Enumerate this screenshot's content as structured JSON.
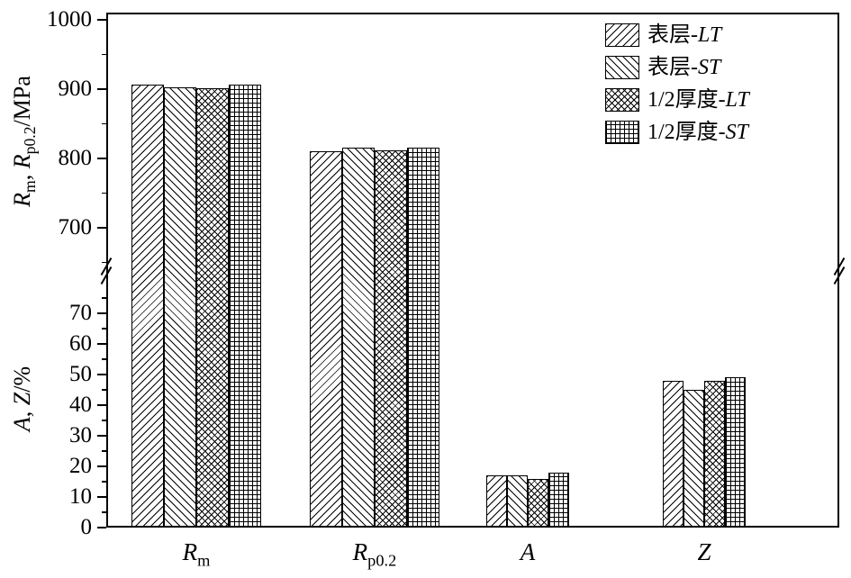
{
  "chart_data": {
    "type": "bar",
    "title": "",
    "categories": [
      "Rm",
      "Rp0.2",
      "A",
      "Z"
    ],
    "category_labels": [
      [
        {
          "t": "R",
          "i": true
        },
        {
          "t": "m",
          "sub": true
        }
      ],
      [
        {
          "t": "R",
          "i": true
        },
        {
          "t": "p0.2",
          "sub": true
        }
      ],
      [
        {
          "t": "A",
          "i": true
        }
      ],
      [
        {
          "t": "Z",
          "i": true
        }
      ]
    ],
    "series": [
      {
        "name": "表层-LT",
        "pattern": "diagonal-forward-hatch",
        "values": [
          907,
          810,
          17,
          48
        ]
      },
      {
        "name": "表层-ST",
        "pattern": "diagonal-backward-hatch",
        "values": [
          902,
          815,
          17,
          45
        ]
      },
      {
        "name": "1/2厚度-LT",
        "pattern": "diagonal-crosshatch",
        "values": [
          901,
          812,
          16,
          48
        ]
      },
      {
        "name": "1/2厚度-ST",
        "pattern": "square-grid",
        "values": [
          907,
          816,
          18,
          49
        ]
      }
    ],
    "y_axis_top": {
      "label_text": "Rm, Rp0.2/MPa",
      "label_parts": [
        {
          "t": "R",
          "i": true
        },
        {
          "t": "m",
          "sub": true
        },
        {
          "t": ", "
        },
        {
          "t": "R",
          "i": true
        },
        {
          "t": "p0.2",
          "sub": true
        },
        {
          "t": "/MPa"
        }
      ],
      "unit": "MPa",
      "ticks": [
        700,
        800,
        900,
        1000
      ],
      "minor_ticks": [
        650,
        750,
        850,
        950
      ],
      "range": [
        640,
        1000
      ]
    },
    "y_axis_bottom": {
      "label_text": "A, Z/%",
      "label_parts": [
        {
          "t": "A",
          "i": true
        },
        {
          "t": ", "
        },
        {
          "t": "Z",
          "i": true
        },
        {
          "t": "/%"
        }
      ],
      "unit": "%",
      "ticks": [
        0,
        10,
        20,
        30,
        40,
        50,
        60,
        70
      ],
      "minor_ticks": [
        5,
        15,
        25,
        35,
        45,
        55,
        65,
        75
      ],
      "range": [
        0,
        84
      ]
    },
    "axis_break": true,
    "grid": false,
    "legend_position": "top-right",
    "colors": {
      "foreground": "#000000",
      "background": "#ffffff"
    }
  }
}
